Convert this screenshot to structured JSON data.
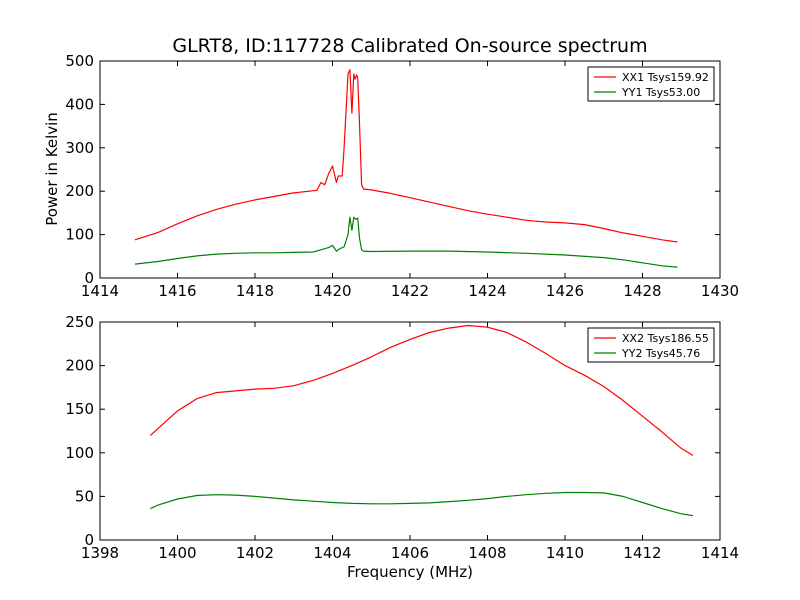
{
  "chart_data": [
    {
      "type": "line",
      "title": "GLRT8, ID:117728 Calibrated On-source spectrum",
      "xlabel": "",
      "ylabel": "Power in Kelvin",
      "xlim": [
        1414,
        1430
      ],
      "ylim": [
        0,
        500
      ],
      "xticks": [
        "1414",
        "1416",
        "1418",
        "1420",
        "1422",
        "1424",
        "1426",
        "1428",
        "1430"
      ],
      "yticks": [
        "0",
        "100",
        "200",
        "300",
        "400",
        "500"
      ],
      "grid": false,
      "legend_position": "top-right",
      "series": [
        {
          "name": "XX1 Tsys159.92",
          "color": "#ff0000",
          "x": [
            1414.9,
            1415.5,
            1416.0,
            1416.5,
            1417.0,
            1417.5,
            1418.0,
            1418.5,
            1419.0,
            1419.4,
            1419.6,
            1419.7,
            1419.8,
            1419.9,
            1420.0,
            1420.1,
            1420.15,
            1420.25,
            1420.3,
            1420.4,
            1420.45,
            1420.5,
            1420.55,
            1420.58,
            1420.62,
            1420.65,
            1420.7,
            1420.75,
            1420.8,
            1421.0,
            1421.5,
            1422.0,
            1422.5,
            1423.0,
            1423.5,
            1424.0,
            1424.5,
            1425.0,
            1425.5,
            1426.0,
            1426.5,
            1427.0,
            1427.5,
            1428.0,
            1428.5,
            1428.9
          ],
          "y": [
            88,
            105,
            125,
            143,
            158,
            170,
            180,
            188,
            196,
            200,
            202,
            220,
            215,
            240,
            258,
            220,
            235,
            235,
            300,
            470,
            480,
            380,
            470,
            458,
            468,
            462,
            350,
            215,
            205,
            203,
            195,
            185,
            175,
            165,
            155,
            147,
            140,
            133,
            129,
            127,
            123,
            114,
            104,
            96,
            88,
            83
          ]
        },
        {
          "name": "YY1 Tsys53.00",
          "color": "#008000",
          "x": [
            1414.9,
            1415.5,
            1416.0,
            1416.5,
            1417.0,
            1417.5,
            1418.0,
            1418.5,
            1419.0,
            1419.5,
            1419.7,
            1419.9,
            1420.0,
            1420.1,
            1420.2,
            1420.3,
            1420.4,
            1420.45,
            1420.5,
            1420.55,
            1420.6,
            1420.65,
            1420.7,
            1420.75,
            1420.8,
            1421.0,
            1422.0,
            1423.0,
            1424.0,
            1425.0,
            1426.0,
            1427.0,
            1427.5,
            1428.0,
            1428.5,
            1428.9
          ],
          "y": [
            32,
            38,
            45,
            51,
            55,
            57,
            58,
            58,
            59,
            60,
            65,
            70,
            75,
            62,
            68,
            72,
            100,
            140,
            110,
            140,
            135,
            138,
            90,
            65,
            62,
            61,
            62,
            62,
            60,
            57,
            53,
            47,
            42,
            35,
            28,
            25
          ]
        }
      ]
    },
    {
      "type": "line",
      "title": "",
      "xlabel": "Frequency (MHz)",
      "ylabel": "",
      "xlim": [
        1398,
        1414
      ],
      "ylim": [
        0,
        250
      ],
      "xticks": [
        "1398",
        "1400",
        "1402",
        "1404",
        "1406",
        "1408",
        "1410",
        "1412",
        "1414"
      ],
      "yticks": [
        "0",
        "50",
        "100",
        "150",
        "200",
        "250"
      ],
      "grid": false,
      "legend_position": "top-right",
      "series": [
        {
          "name": "XX2 Tsys186.55",
          "color": "#ff0000",
          "x": [
            1399.3,
            1399.5,
            1400.0,
            1400.5,
            1401.0,
            1401.5,
            1402.0,
            1402.5,
            1403.0,
            1403.5,
            1404.0,
            1404.5,
            1405.0,
            1405.5,
            1406.0,
            1406.5,
            1407.0,
            1407.5,
            1408.0,
            1408.5,
            1409.0,
            1409.5,
            1410.0,
            1410.5,
            1411.0,
            1411.5,
            1412.0,
            1412.5,
            1413.0,
            1413.3
          ],
          "y": [
            120,
            128,
            148,
            162,
            169,
            171,
            173,
            174,
            177,
            183,
            191,
            200,
            210,
            221,
            230,
            238,
            243,
            246,
            244,
            238,
            227,
            214,
            200,
            189,
            176,
            160,
            142,
            124,
            105,
            97
          ]
        },
        {
          "name": "YY2 Tsys45.76",
          "color": "#008000",
          "x": [
            1399.3,
            1399.5,
            1400.0,
            1400.5,
            1401.0,
            1401.5,
            1402.0,
            1402.5,
            1403.0,
            1403.5,
            1404.0,
            1404.5,
            1405.0,
            1405.5,
            1406.0,
            1406.5,
            1407.0,
            1407.5,
            1408.0,
            1408.5,
            1409.0,
            1409.5,
            1410.0,
            1410.5,
            1411.0,
            1411.5,
            1412.0,
            1412.5,
            1413.0,
            1413.3
          ],
          "y": [
            36,
            40,
            47,
            51,
            52,
            51.5,
            50,
            48,
            46,
            44.5,
            43,
            42,
            41.5,
            41.5,
            42,
            42.5,
            44,
            45.5,
            47.5,
            50,
            52,
            53.5,
            54.5,
            54.5,
            54,
            50,
            43,
            36,
            30,
            28
          ]
        }
      ]
    }
  ]
}
